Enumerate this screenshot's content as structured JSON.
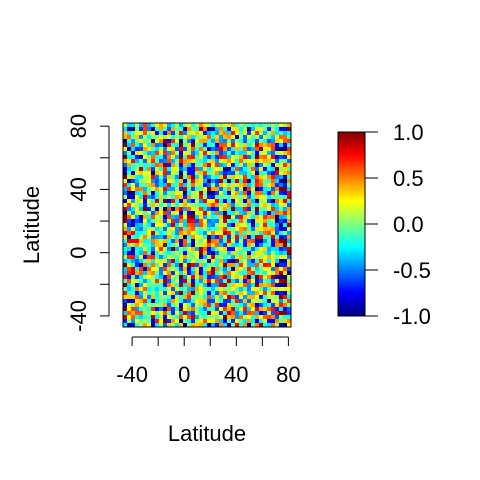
{
  "chart_data": {
    "type": "heatmap",
    "title": "",
    "xlabel": "Latitude",
    "ylabel": "Latitude",
    "x_range": [
      -47,
      82
    ],
    "y_range": [
      -47,
      82
    ],
    "x_ticks": [
      -40,
      -20,
      0,
      20,
      40,
      60,
      80
    ],
    "x_tick_labels": [
      "-40",
      "",
      "0",
      "",
      "40",
      "",
      "80"
    ],
    "y_ticks": [
      -40,
      -20,
      0,
      20,
      40,
      60,
      80
    ],
    "y_tick_labels": [
      "-40",
      "",
      "0",
      "",
      "40",
      "",
      "80"
    ],
    "value_range": [
      -1.0,
      1.0
    ],
    "colorbar": {
      "ticks": [
        -1.0,
        -0.5,
        0.0,
        0.5,
        1.0
      ],
      "tick_labels": [
        "-1.0",
        "-0.5",
        "0.0",
        "0.5",
        "1.0"
      ],
      "colormap": [
        "#00007F",
        "#0000FF",
        "#007FFF",
        "#00FFFF",
        "#7FFF7F",
        "#FFFF00",
        "#FF7F00",
        "#FF0000",
        "#7F0000"
      ]
    },
    "grid": false,
    "legend": "right"
  }
}
